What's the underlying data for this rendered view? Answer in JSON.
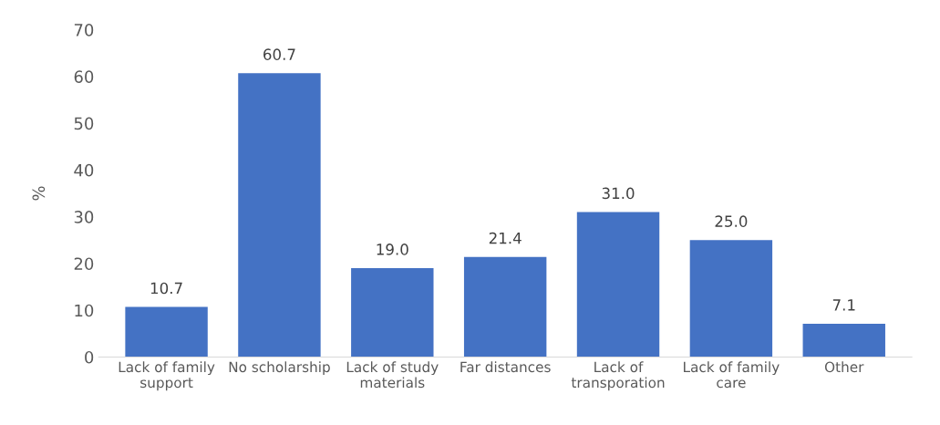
{
  "chart_data": {
    "type": "bar",
    "ylabel": "%",
    "categories": [
      "Lack of family\nsupport",
      "No scholarship",
      "Lack of study\nmaterials",
      "Far distances",
      "Lack of\ntransporation",
      "Lack of family\ncare",
      "Other"
    ],
    "values": [
      10.7,
      60.7,
      19.0,
      21.4,
      31.0,
      25.0,
      7.1
    ],
    "value_labels": [
      "10.7",
      "60.7",
      "19.0",
      "21.4",
      "31.0",
      "25.0",
      "7.1"
    ],
    "color": "#4472c4",
    "ylim": [
      0,
      70
    ],
    "yticks": [
      0,
      10,
      20,
      30,
      40,
      50,
      60,
      70
    ],
    "grid": false
  }
}
